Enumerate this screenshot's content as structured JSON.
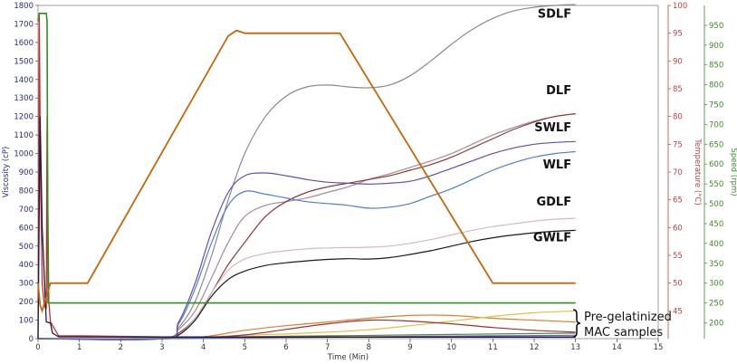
{
  "chart_data": {
    "type": "line",
    "xlabel": "Time (Min)",
    "ylabel_left": "Viscosity (cP)",
    "ylabel_right_temp": "Temperature (°C)",
    "ylabel_right_speed": "Speed (rpm)",
    "xlim": [
      0,
      15
    ],
    "ylim_left": [
      0,
      1800
    ],
    "ylim_temp": [
      40,
      100
    ],
    "ylim_speed": [
      160,
      1000
    ],
    "x_ticks": [
      "0",
      "1",
      "2",
      "3",
      "4",
      "5",
      "6",
      "7",
      "8",
      "9",
      "10",
      "11",
      "12",
      "13",
      "14",
      "15"
    ],
    "left_ticks": [
      "0",
      "100",
      "200",
      "300",
      "400",
      "500",
      "600",
      "700",
      "800",
      "900",
      "1000",
      "1100",
      "1200",
      "1300",
      "1400",
      "1500",
      "1600",
      "1700",
      "1800"
    ],
    "temp_ticks": [
      "45",
      "50",
      "55",
      "60",
      "65",
      "70",
      "75",
      "80",
      "85",
      "90",
      "95",
      "100"
    ],
    "speed_ticks": [
      "200",
      "250",
      "300",
      "350",
      "400",
      "450",
      "500",
      "550",
      "600",
      "650",
      "700",
      "750",
      "800",
      "850",
      "900",
      "950"
    ],
    "annotation": "Pre-gelatinized\nMAC samples",
    "series": [
      {
        "name": "SDLF",
        "label_pos": [
          12.9,
          1735
        ],
        "color": "#8a8a8a",
        "values": [
          [
            0,
            0
          ],
          [
            3,
            0
          ],
          [
            3.4,
            60
          ],
          [
            3.8,
            200
          ],
          [
            4.2,
            450
          ],
          [
            4.6,
            750
          ],
          [
            5,
            1000
          ],
          [
            5.5,
            1200
          ],
          [
            6,
            1310
          ],
          [
            6.5,
            1360
          ],
          [
            7,
            1370
          ],
          [
            7.5,
            1360
          ],
          [
            8,
            1355
          ],
          [
            8.5,
            1370
          ],
          [
            9,
            1420
          ],
          [
            9.5,
            1500
          ],
          [
            10,
            1590
          ],
          [
            10.5,
            1670
          ],
          [
            11,
            1730
          ],
          [
            11.5,
            1770
          ],
          [
            12,
            1790
          ],
          [
            12.5,
            1800
          ],
          [
            13,
            1805
          ]
        ]
      },
      {
        "name": "DLF",
        "label_pos": [
          12.9,
          1320
        ],
        "color": "#a98a92",
        "values": [
          [
            0,
            0
          ],
          [
            3,
            0
          ],
          [
            3.4,
            50
          ],
          [
            3.8,
            150
          ],
          [
            4.2,
            330
          ],
          [
            4.6,
            520
          ],
          [
            5,
            660
          ],
          [
            5.5,
            720
          ],
          [
            6,
            740
          ],
          [
            6.5,
            760
          ],
          [
            7,
            790
          ],
          [
            7.5,
            820
          ],
          [
            8,
            860
          ],
          [
            8.5,
            890
          ],
          [
            9,
            925
          ],
          [
            9.5,
            960
          ],
          [
            10,
            1000
          ],
          [
            10.5,
            1050
          ],
          [
            11,
            1100
          ],
          [
            11.5,
            1140
          ],
          [
            12,
            1175
          ],
          [
            12.5,
            1200
          ],
          [
            13,
            1215
          ]
        ]
      },
      {
        "name": "SWLF",
        "label_pos": [
          12.9,
          1120
        ],
        "color": "#8a3a3a",
        "values": [
          [
            0,
            0
          ],
          [
            3,
            0
          ],
          [
            3.4,
            30
          ],
          [
            3.8,
            110
          ],
          [
            4.2,
            250
          ],
          [
            4.6,
            400
          ],
          [
            5,
            520
          ],
          [
            5.5,
            660
          ],
          [
            6,
            740
          ],
          [
            6.5,
            790
          ],
          [
            7,
            820
          ],
          [
            7.5,
            840
          ],
          [
            8,
            860
          ],
          [
            8.5,
            880
          ],
          [
            9,
            910
          ],
          [
            9.5,
            940
          ],
          [
            10,
            980
          ],
          [
            10.5,
            1030
          ],
          [
            11,
            1080
          ],
          [
            11.5,
            1130
          ],
          [
            12,
            1170
          ],
          [
            12.5,
            1200
          ],
          [
            13,
            1215
          ]
        ]
      },
      {
        "name": "WLF",
        "label_pos": [
          12.9,
          920
        ],
        "color": "#4d7fd1",
        "values": [
          [
            0,
            0
          ],
          [
            3,
            0
          ],
          [
            3.4,
            80
          ],
          [
            3.8,
            270
          ],
          [
            4.2,
            520
          ],
          [
            4.6,
            720
          ],
          [
            5,
            795
          ],
          [
            5.5,
            780
          ],
          [
            6,
            760
          ],
          [
            6.5,
            740
          ],
          [
            7,
            730
          ],
          [
            7.5,
            720
          ],
          [
            8,
            705
          ],
          [
            8.5,
            710
          ],
          [
            9,
            730
          ],
          [
            9.5,
            770
          ],
          [
            10,
            810
          ],
          [
            10.5,
            860
          ],
          [
            11,
            910
          ],
          [
            11.5,
            950
          ],
          [
            12,
            980
          ],
          [
            12.5,
            1000
          ],
          [
            13,
            1010
          ]
        ]
      },
      {
        "name": "WLF-peak",
        "label_pos": null,
        "color": "#6a4aa8",
        "values": [
          [
            0,
            0
          ],
          [
            3,
            0
          ],
          [
            3.4,
            90
          ],
          [
            3.8,
            300
          ],
          [
            4.2,
            580
          ],
          [
            4.6,
            790
          ],
          [
            5,
            880
          ],
          [
            5.5,
            895
          ],
          [
            6,
            880
          ],
          [
            6.5,
            860
          ],
          [
            7,
            845
          ],
          [
            7.5,
            840
          ],
          [
            8,
            835
          ],
          [
            8.5,
            840
          ],
          [
            9,
            850
          ],
          [
            9.5,
            880
          ],
          [
            10,
            920
          ],
          [
            10.5,
            960
          ],
          [
            11,
            1000
          ],
          [
            11.5,
            1030
          ],
          [
            12,
            1050
          ],
          [
            12.5,
            1060
          ],
          [
            13,
            1065
          ]
        ]
      },
      {
        "name": "GDLF",
        "label_pos": [
          12.9,
          718
        ],
        "color": "#d9b8bc",
        "values": [
          [
            0,
            0
          ],
          [
            3,
            0
          ],
          [
            3.4,
            20
          ],
          [
            3.8,
            110
          ],
          [
            4.2,
            250
          ],
          [
            4.6,
            370
          ],
          [
            5,
            430
          ],
          [
            5.5,
            460
          ],
          [
            6,
            475
          ],
          [
            6.5,
            485
          ],
          [
            7,
            490
          ],
          [
            7.5,
            492
          ],
          [
            8,
            494
          ],
          [
            8.5,
            500
          ],
          [
            9,
            515
          ],
          [
            9.5,
            535
          ],
          [
            10,
            560
          ],
          [
            10.5,
            585
          ],
          [
            11,
            605
          ],
          [
            11.5,
            620
          ],
          [
            12,
            635
          ],
          [
            12.5,
            645
          ],
          [
            13,
            650
          ]
        ]
      },
      {
        "name": "GWLF",
        "label_pos": [
          12.9,
          525
        ],
        "color": "#1a1a1a",
        "values": [
          [
            0,
            0
          ],
          [
            3,
            0
          ],
          [
            3.4,
            20
          ],
          [
            3.8,
            100
          ],
          [
            4.2,
            230
          ],
          [
            4.6,
            320
          ],
          [
            5,
            365
          ],
          [
            5.5,
            395
          ],
          [
            6,
            410
          ],
          [
            6.5,
            420
          ],
          [
            7,
            428
          ],
          [
            7.5,
            432
          ],
          [
            8,
            430
          ],
          [
            8.5,
            438
          ],
          [
            9,
            455
          ],
          [
            9.5,
            475
          ],
          [
            10,
            500
          ],
          [
            10.5,
            525
          ],
          [
            11,
            545
          ],
          [
            11.5,
            560
          ],
          [
            12,
            572
          ],
          [
            12.5,
            580
          ],
          [
            13,
            585
          ]
        ]
      },
      {
        "name": "MAC-orange",
        "label_pos": null,
        "color": "#d98030",
        "values": [
          [
            0,
            0
          ],
          [
            3,
            0
          ],
          [
            4,
            10
          ],
          [
            5,
            45
          ],
          [
            6,
            70
          ],
          [
            7,
            90
          ],
          [
            8,
            110
          ],
          [
            9,
            125
          ],
          [
            10,
            125
          ],
          [
            11,
            110
          ],
          [
            12,
            100
          ],
          [
            13,
            90
          ]
        ]
      },
      {
        "name": "MAC-yellow",
        "label_pos": null,
        "color": "#e0c040",
        "values": [
          [
            0,
            0
          ],
          [
            3,
            0
          ],
          [
            4,
            8
          ],
          [
            5,
            18
          ],
          [
            6,
            25
          ],
          [
            7,
            35
          ],
          [
            8,
            48
          ],
          [
            9,
            70
          ],
          [
            10,
            95
          ],
          [
            11,
            120
          ],
          [
            12,
            140
          ],
          [
            13,
            150
          ]
        ]
      },
      {
        "name": "MAC-red",
        "label_pos": null,
        "color": "#a03030",
        "values": [
          [
            0,
            0
          ],
          [
            3,
            0
          ],
          [
            4,
            5
          ],
          [
            5,
            20
          ],
          [
            6,
            50
          ],
          [
            7,
            80
          ],
          [
            8,
            100
          ],
          [
            9,
            95
          ],
          [
            10,
            80
          ],
          [
            11,
            60
          ],
          [
            12,
            45
          ],
          [
            13,
            35
          ]
        ]
      },
      {
        "name": "MAC-green",
        "label_pos": null,
        "color": "#4a8a4a",
        "values": [
          [
            0,
            0
          ],
          [
            3,
            0
          ],
          [
            5,
            10
          ],
          [
            7,
            15
          ],
          [
            9,
            20
          ],
          [
            11,
            25
          ],
          [
            13,
            30
          ]
        ]
      },
      {
        "name": "MAC-blue",
        "label_pos": null,
        "color": "#4d6fd1",
        "values": [
          [
            0,
            0
          ],
          [
            3,
            0
          ],
          [
            5,
            5
          ],
          [
            7,
            8
          ],
          [
            9,
            12
          ],
          [
            11,
            15
          ],
          [
            13,
            18
          ]
        ]
      }
    ],
    "temperature": {
      "color": "#c2680a",
      "values": [
        [
          0,
          50
        ],
        [
          0.05,
          46
        ],
        [
          0.1,
          45
        ],
        [
          0.3,
          50
        ],
        [
          1,
          50
        ],
        [
          1.2,
          50
        ],
        [
          4.6,
          94.5
        ],
        [
          4.8,
          95.5
        ],
        [
          5,
          95
        ],
        [
          7,
          95
        ],
        [
          7.3,
          95
        ],
        [
          11,
          50
        ],
        [
          13,
          50
        ]
      ]
    },
    "speed": {
      "color": "#2f8f1f",
      "values": [
        [
          0,
          960
        ],
        [
          0.03,
          980
        ],
        [
          0.2,
          980
        ],
        [
          0.22,
          960
        ],
        [
          0.24,
          250
        ],
        [
          0.3,
          250
        ],
        [
          13,
          250
        ]
      ]
    },
    "startup_spike": {
      "color": "#c03030",
      "values": [
        [
          0,
          0
        ],
        [
          0.03,
          1750
        ],
        [
          0.06,
          900
        ],
        [
          0.1,
          300
        ],
        [
          0.15,
          180
        ],
        [
          0.2,
          160
        ],
        [
          0.22,
          1200
        ],
        [
          0.26,
          200
        ],
        [
          0.3,
          90
        ],
        [
          0.5,
          15
        ],
        [
          1,
          15
        ],
        [
          3,
          10
        ],
        [
          13,
          10
        ]
      ]
    },
    "startup_dark": {
      "color": "#1a1a40",
      "values": [
        [
          0,
          0
        ],
        [
          0.05,
          1200
        ],
        [
          0.1,
          600
        ],
        [
          0.2,
          90
        ],
        [
          0.3,
          85
        ],
        [
          0.35,
          30
        ],
        [
          0.5,
          10
        ],
        [
          3,
          8
        ],
        [
          13,
          8
        ]
      ]
    }
  }
}
